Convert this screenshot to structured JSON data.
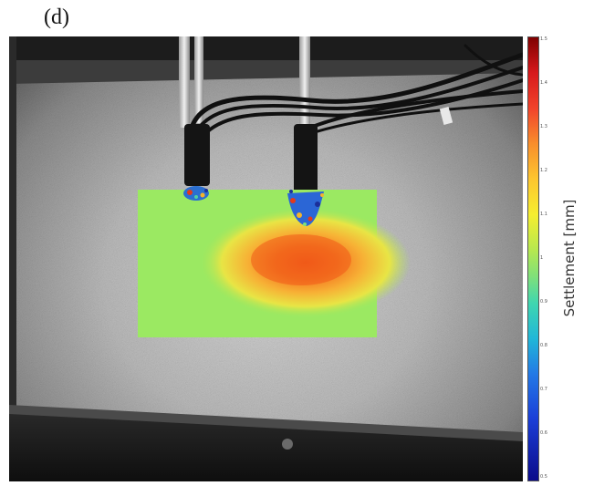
{
  "panel_label": "(d)",
  "colorbar": {
    "title": "Settlement [mm]",
    "ticks": [
      "1.5",
      "1.4",
      "1.3",
      "1.2",
      "1.1",
      "1",
      "0.9",
      "0.8",
      "0.7",
      "0.6",
      "0.5"
    ],
    "colors": {
      "top": "#7f0000",
      "red": "#d7191c",
      "orange": "#f98e2b",
      "yellow": "#f6ee2f",
      "green": "#7fe07a",
      "cyan": "#21b7d8",
      "blue": "#1b3fd8",
      "bottom": "#0b0b8a"
    }
  },
  "photo": {
    "overlay_colors": {
      "base": "#8ce86a",
      "hotspot_core": "#f26a1e",
      "hotspot_outer": "#f5c33a"
    }
  }
}
